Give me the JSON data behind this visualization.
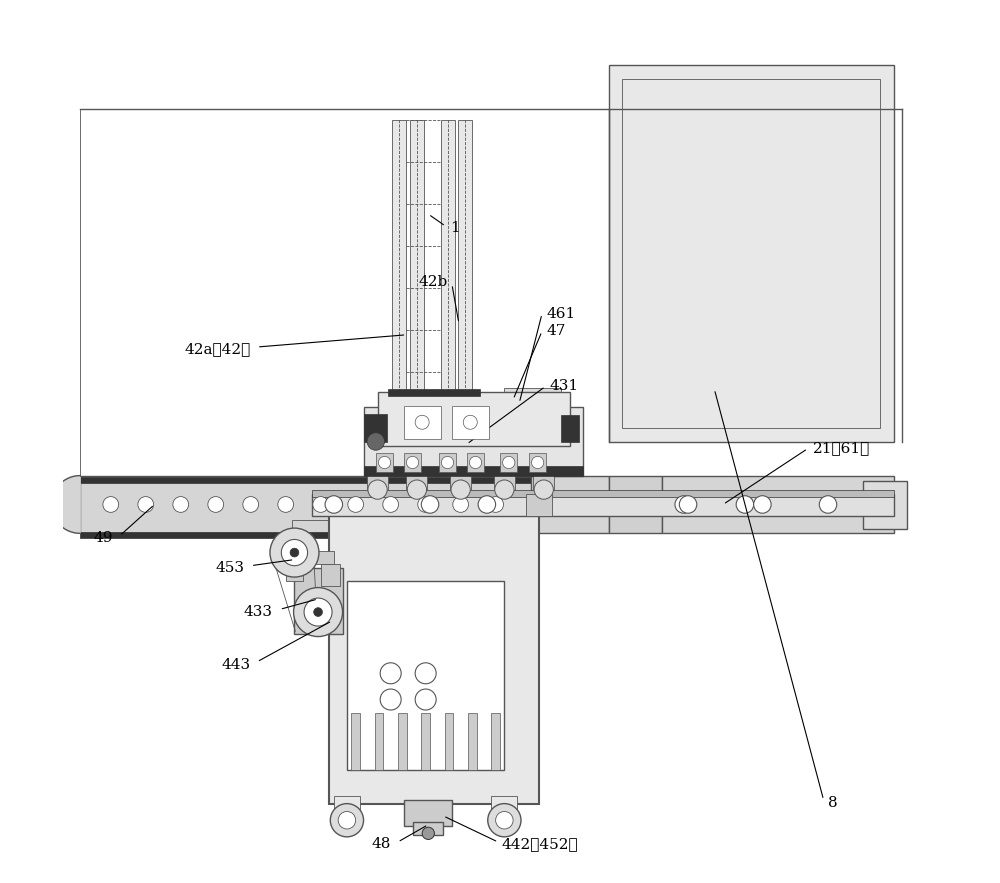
{
  "bg_color": "#ffffff",
  "line_color": "#555555",
  "dark_color": "#333333",
  "light_gray": "#aaaaaa",
  "medium_gray": "#888888",
  "fill_light": "#e8e8e8",
  "fill_medium": "#cccccc",
  "fill_dark": "#999999",
  "figsize": [
    10.0,
    8.83
  ],
  "dpi": 100
}
